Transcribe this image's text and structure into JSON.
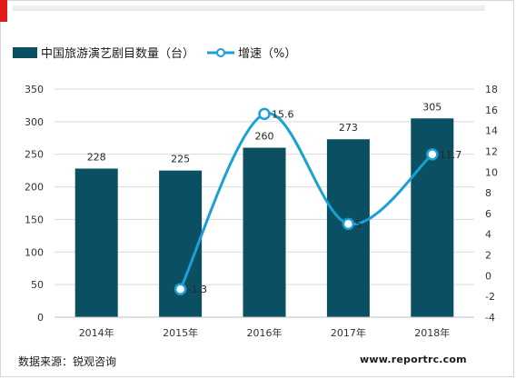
{
  "legend": {
    "bar_label": "中国旅游演艺剧目数量（台）",
    "line_label": "增速（%）"
  },
  "source": "数据来源：锐观咨询",
  "site": "www.reportrc.com",
  "chart_data": {
    "type": "bar+line",
    "categories": [
      "2014年",
      "2015年",
      "2016年",
      "2017年",
      "2018年"
    ],
    "series": [
      {
        "name": "中国旅游演艺剧目数量（台）",
        "type": "bar",
        "axis": "left",
        "values": [
          228,
          225,
          260,
          273,
          305
        ],
        "color": "#0b4f63"
      },
      {
        "name": "增速（%）",
        "type": "line",
        "axis": "right",
        "values": [
          null,
          -1.3,
          15.6,
          5,
          11.7
        ],
        "labels": [
          "",
          "-1.3",
          "15.6",
          "5",
          "11.7"
        ],
        "color": "#1aa0d6"
      }
    ],
    "y_left": {
      "min": 0,
      "max": 350,
      "ticks": [
        0,
        50,
        100,
        150,
        200,
        250,
        300,
        350
      ]
    },
    "y_right": {
      "min": -4,
      "max": 18,
      "ticks": [
        -4,
        -2,
        0,
        2,
        4,
        6,
        8,
        10,
        12,
        14,
        16,
        18
      ]
    },
    "grid": true,
    "legend_position": "top-left"
  }
}
